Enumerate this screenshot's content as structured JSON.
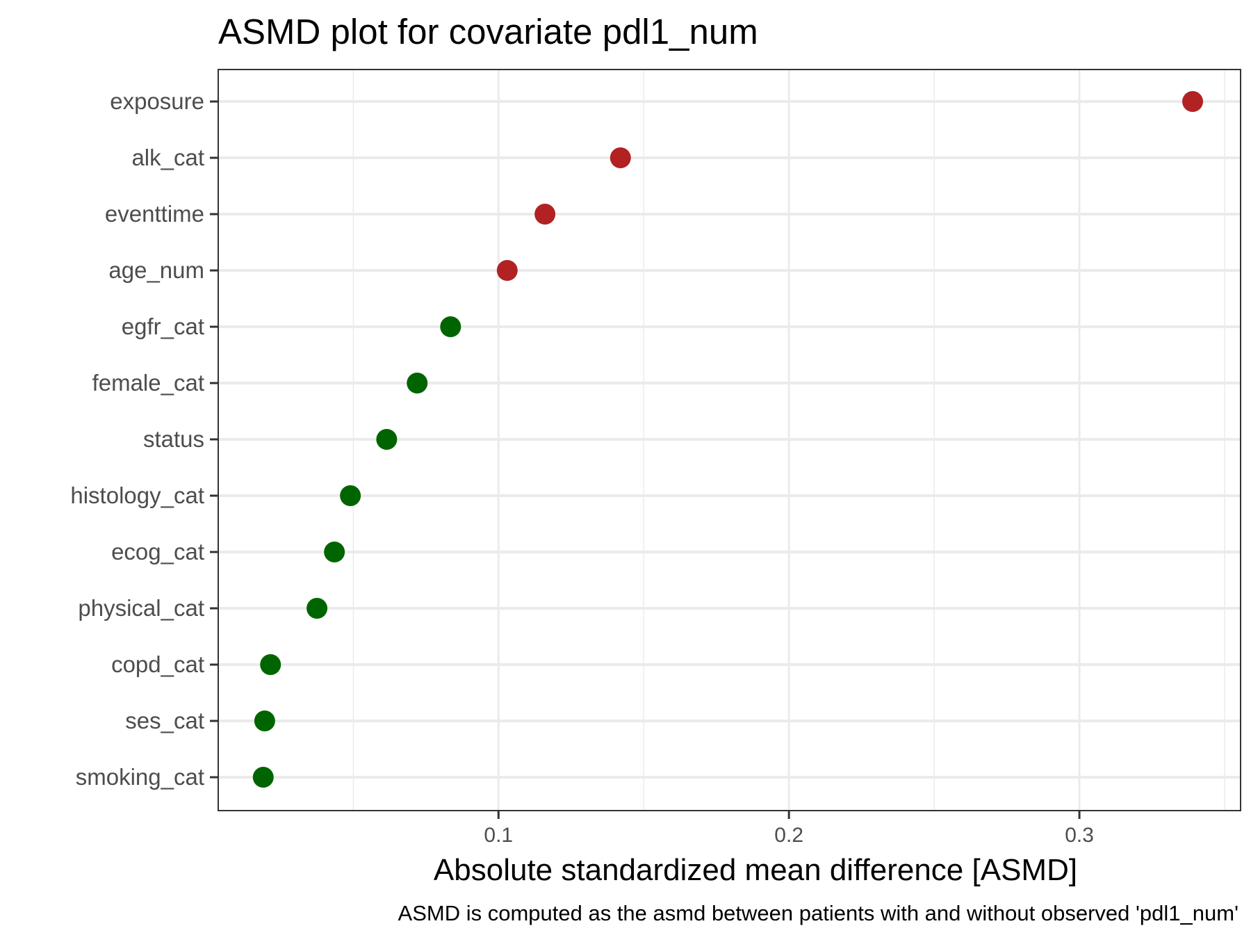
{
  "chart_data": {
    "type": "scatter",
    "title": "ASMD plot for covariate pdl1_num",
    "xlabel": "Absolute standardized mean difference [ASMD]",
    "ylabel": "",
    "caption": "ASMD is computed as the asmd between patients with and without observed 'pdl1_num'",
    "xlim": [
      0.0035,
      0.3555
    ],
    "xticks": [
      0.1,
      0.2,
      0.3
    ],
    "xtick_labels": [
      "0.1",
      "0.2",
      "0.3"
    ],
    "xminor": [
      0.05,
      0.15,
      0.25,
      0.35
    ],
    "grid": true,
    "legend": "none",
    "point_radius": 15,
    "points": [
      {
        "label": "exposure",
        "value": 0.339,
        "color": "#B22222"
      },
      {
        "label": "alk_cat",
        "value": 0.142,
        "color": "#B22222"
      },
      {
        "label": "eventtime",
        "value": 0.116,
        "color": "#B22222"
      },
      {
        "label": "age_num",
        "value": 0.103,
        "color": "#B22222"
      },
      {
        "label": "egfr_cat",
        "value": 0.0835,
        "color": "#006400"
      },
      {
        "label": "female_cat",
        "value": 0.072,
        "color": "#006400"
      },
      {
        "label": "status",
        "value": 0.0615,
        "color": "#006400"
      },
      {
        "label": "histology_cat",
        "value": 0.049,
        "color": "#006400"
      },
      {
        "label": "ecog_cat",
        "value": 0.0435,
        "color": "#006400"
      },
      {
        "label": "physical_cat",
        "value": 0.0375,
        "color": "#006400"
      },
      {
        "label": "copd_cat",
        "value": 0.0215,
        "color": "#006400"
      },
      {
        "label": "ses_cat",
        "value": 0.0195,
        "color": "#006400"
      },
      {
        "label": "smoking_cat",
        "value": 0.019,
        "color": "#006400"
      }
    ]
  }
}
